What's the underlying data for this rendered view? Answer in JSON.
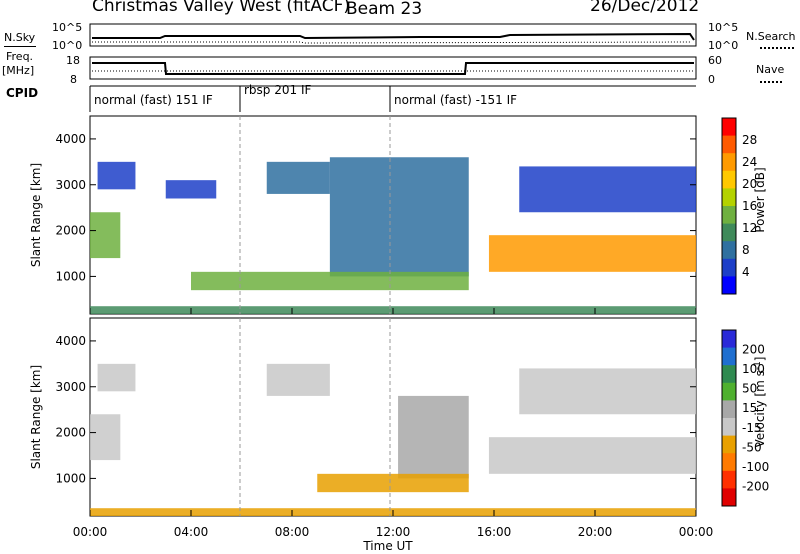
{
  "header": {
    "station": "Christmas Valley West (fitACF)",
    "beam": "Beam 23",
    "date": "26/Dec/2012"
  },
  "noise_panel": {
    "left_label": "N.Sky",
    "right_label": "N.Search",
    "left_ticks": [
      "10^5",
      "10^0"
    ],
    "right_ticks": [
      "10^5",
      "10^0"
    ]
  },
  "freq_panel": {
    "left_label_line1": "Freq.",
    "left_label_line2": "[MHz]",
    "right_label": "Nave",
    "left_ticks": [
      "18",
      "8"
    ],
    "right_ticks": [
      "60",
      "0"
    ]
  },
  "cpid": {
    "label": "CPID",
    "segments": [
      {
        "start_ut": "00:00",
        "text": "normal (fast) 151 IF"
      },
      {
        "start_ut": "06:00",
        "text": "rbsp 201 IF"
      },
      {
        "start_ut": "12:00",
        "text": "normal (fast) -151 IF"
      }
    ]
  },
  "power_colorbar": {
    "label": "Power [dB]",
    "ticks": [
      "28",
      "24",
      "20",
      "16",
      "12",
      "8",
      "4"
    ],
    "colors": [
      "#ff0000",
      "#ff5a00",
      "#ff9a00",
      "#ffc800",
      "#b4d200",
      "#6fb040",
      "#3f8a5a",
      "#2f70a0",
      "#1d3fc8",
      "#0000ff"
    ]
  },
  "velocity_colorbar": {
    "label": "Velocity [m s",
    "label_exp": "-1",
    "label_end": "]",
    "ticks": [
      "200",
      "100",
      "50",
      "15",
      "-15",
      "-50",
      "-100",
      "-200"
    ],
    "colors": [
      "#2a2ad8",
      "#1f6fd0",
      "#2f8a50",
      "#4fb02f",
      "#a8a8a8",
      "#c8c8c8",
      "#e8a000",
      "#ff7a00",
      "#ff3000",
      "#e00000"
    ]
  },
  "x_axis": {
    "label": "Time UT",
    "ticks": [
      "00:00",
      "04:00",
      "08:00",
      "12:00",
      "16:00",
      "20:00",
      "00:00"
    ]
  },
  "chart_data": [
    {
      "type": "heatmap",
      "name_text": "Power",
      "xlabel": "",
      "ylabel": "Slant Range [km]",
      "xlim_hours": [
        0,
        24
      ],
      "ylim_km": [
        180,
        4500
      ],
      "yticks": [
        1000,
        2000,
        3000,
        4000
      ],
      "features": [
        {
          "t0": 0.0,
          "t1": 1.2,
          "r0": 1400,
          "r1": 2400,
          "power_db": 16
        },
        {
          "t0": 0.3,
          "t1": 1.8,
          "r0": 2900,
          "r1": 3500,
          "power_db": 6
        },
        {
          "t0": 3.0,
          "t1": 5.0,
          "r0": 2700,
          "r1": 3100,
          "power_db": 5
        },
        {
          "t0": 7.0,
          "t1": 9.5,
          "r0": 2800,
          "r1": 3500,
          "power_db": 8
        },
        {
          "t0": 9.5,
          "t1": 15.0,
          "r0": 1000,
          "r1": 3600,
          "power_db": 8
        },
        {
          "t0": 4.0,
          "t1": 15.0,
          "r0": 700,
          "r1": 1100,
          "power_db": 14
        },
        {
          "t0": 0.0,
          "t1": 24.0,
          "r0": 180,
          "r1": 350,
          "power_db": 10
        },
        {
          "t0": 15.8,
          "t1": 24.0,
          "r0": 1100,
          "r1": 1900,
          "power_db": 24
        },
        {
          "t0": 17.0,
          "t1": 24.0,
          "r0": 2400,
          "r1": 3400,
          "power_db": 5
        }
      ]
    },
    {
      "type": "heatmap",
      "name_text": "Velocity",
      "xlabel": "Time UT",
      "ylabel": "Slant Range [km]",
      "xlim_hours": [
        0,
        24
      ],
      "ylim_km": [
        180,
        4500
      ],
      "yticks": [
        1000,
        2000,
        3000,
        4000
      ],
      "features": [
        {
          "t0": 0.0,
          "t1": 1.2,
          "r0": 1400,
          "r1": 2400,
          "velocity": 0
        },
        {
          "t0": 0.3,
          "t1": 1.8,
          "r0": 2900,
          "r1": 3500,
          "velocity": 0
        },
        {
          "t0": 7.0,
          "t1": 9.5,
          "r0": 2800,
          "r1": 3500,
          "velocity": 0
        },
        {
          "t0": 12.2,
          "t1": 15.0,
          "r0": 1000,
          "r1": 2800,
          "velocity": 40
        },
        {
          "t0": 9.0,
          "t1": 15.0,
          "r0": 700,
          "r1": 1100,
          "velocity": -60
        },
        {
          "t0": 0.0,
          "t1": 24.0,
          "r0": 180,
          "r1": 350,
          "velocity": -60
        },
        {
          "t0": 15.8,
          "t1": 24.0,
          "r0": 1100,
          "r1": 1900,
          "velocity": 0
        },
        {
          "t0": 17.0,
          "t1": 24.0,
          "r0": 2400,
          "r1": 3400,
          "velocity": 0
        }
      ]
    }
  ]
}
